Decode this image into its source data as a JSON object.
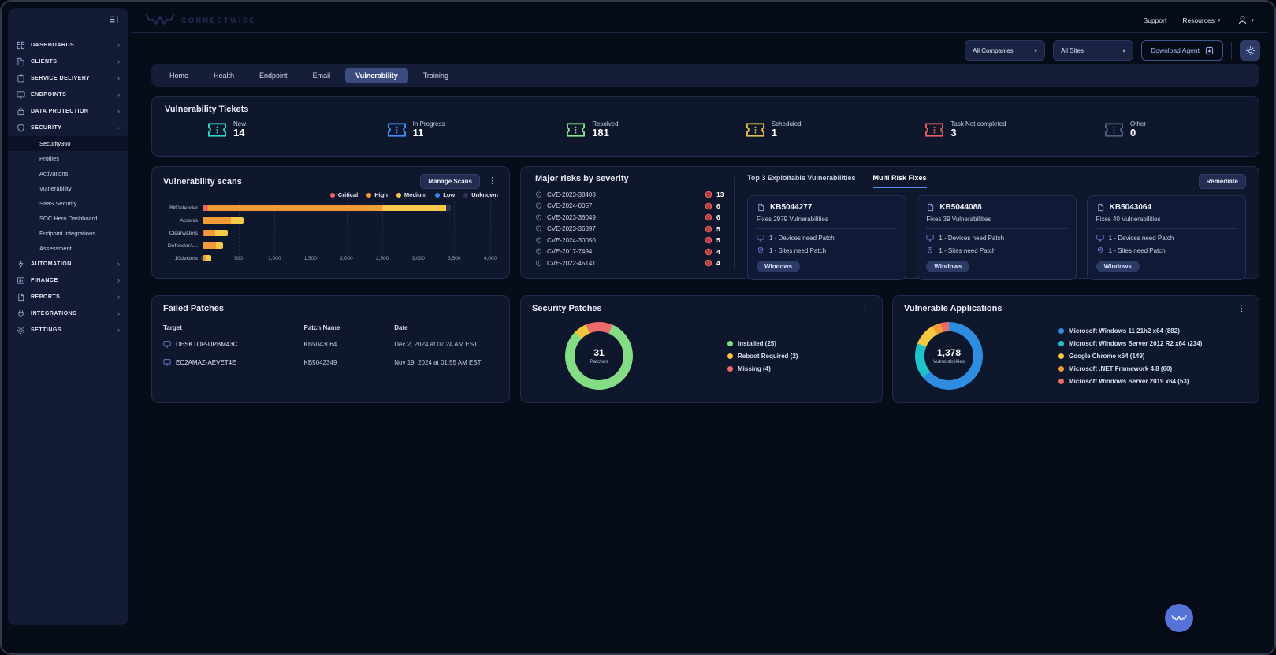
{
  "window": {
    "brand": "CONNECTWISE"
  },
  "header": {
    "support_label": "Support",
    "resources_label": "Resources"
  },
  "toolbar": {
    "companies_value": "All Companies",
    "sites_value": "All Sites",
    "download_label": "Download Agent"
  },
  "sidebar": {
    "items": [
      {
        "label": "DASHBOARDS",
        "icon": "dashboard-icon"
      },
      {
        "label": "CLIENTS",
        "icon": "clients-icon"
      },
      {
        "label": "SERVICE DELIVERY",
        "icon": "service-delivery-icon"
      },
      {
        "label": "ENDPOINTS",
        "icon": "endpoints-icon"
      },
      {
        "label": "DATA PROTECTION",
        "icon": "data-protection-icon"
      },
      {
        "label": "SECURITY",
        "icon": "security-icon",
        "expanded": true,
        "children": [
          "Security360",
          "Profiles",
          "Activations",
          "Vulnerability",
          "SaaS Security",
          "SOC Hero Dashboard",
          "Endpoint Integrations",
          "Assessment"
        ],
        "active_child": "Security360"
      },
      {
        "label": "AUTOMATION",
        "icon": "automation-icon"
      },
      {
        "label": "FINANCE",
        "icon": "finance-icon"
      },
      {
        "label": "REPORTS",
        "icon": "reports-icon"
      },
      {
        "label": "INTEGRATIONS",
        "icon": "integrations-icon"
      },
      {
        "label": "SETTINGS",
        "icon": "settings-icon"
      }
    ]
  },
  "tabs": {
    "items": [
      "Home",
      "Health",
      "Endpoint",
      "Email",
      "Vulnerability",
      "Training"
    ],
    "active": "Vulnerability"
  },
  "tickets": {
    "title": "Vulnerability Tickets",
    "stats": [
      {
        "label": "New",
        "value": "14",
        "color": "#2fd3c9"
      },
      {
        "label": "In Progress",
        "value": "11",
        "color": "#3f8cfa"
      },
      {
        "label": "Resolved",
        "value": "181",
        "color": "#8ade8f"
      },
      {
        "label": "Scheduled",
        "value": "1",
        "color": "#e4bf45"
      },
      {
        "label": "Task Not completed",
        "value": "3",
        "color": "#e25f5c"
      },
      {
        "label": "Other",
        "value": "0",
        "color": "#525e7d"
      }
    ]
  },
  "scans": {
    "title": "Vulnerability scans",
    "manage_button": "Manage Scans"
  },
  "chart_data": [
    {
      "type": "bar",
      "title": "Vulnerability scans",
      "orientation": "horizontal",
      "categories": [
        "BitDefender",
        "Acronis",
        "Clearwaters",
        "DefenderA...",
        "10dectest"
      ],
      "series": [
        {
          "name": "Critical",
          "color": "#f4635e",
          "values": [
            80,
            0,
            25,
            0,
            0
          ]
        },
        {
          "name": "High",
          "color": "#f29b38",
          "values": [
            2420,
            400,
            145,
            190,
            45
          ]
        },
        {
          "name": "Medium",
          "color": "#f7ca4a",
          "values": [
            890,
            170,
            180,
            100,
            75
          ]
        },
        {
          "name": "Low",
          "color": "#3b82f6",
          "values": [
            0,
            0,
            0,
            0,
            0
          ]
        },
        {
          "name": "Unknown",
          "color": "#2a3354",
          "values": [
            60,
            0,
            0,
            0,
            0
          ]
        }
      ],
      "xlim": [
        0,
        4000
      ],
      "xticks": {
        "values": [
          0,
          500,
          1000,
          1500,
          2000,
          2500,
          3000,
          3500,
          4000
        ],
        "labels": [
          "0",
          "500",
          "1,000",
          "1,500",
          "2,000",
          "2,500",
          "3,000",
          "3,500",
          "4,000"
        ]
      },
      "grid": true,
      "legend_position": "top-right"
    },
    {
      "type": "pie",
      "title": "Security Patches",
      "center_value": "31",
      "center_label": "Patches",
      "start_deg": -46,
      "segments": [
        {
          "name": "Reboot Required (2)",
          "value": 2,
          "color": "#f0c53f"
        },
        {
          "name": "Missing (4)",
          "value": 4,
          "color": "#ef6a6a"
        },
        {
          "name": "Installed (25)",
          "value": 25,
          "color": "#84dd84"
        }
      ],
      "legend": [
        {
          "label": "Installed (25)",
          "color": "#84dd84"
        },
        {
          "label": "Reboot Required (2)",
          "color": "#f0c53f"
        },
        {
          "label": "Missing (4)",
          "color": "#ef6a6a"
        }
      ]
    },
    {
      "type": "pie",
      "title": "Vulnerable Applications",
      "center_value": "1,378",
      "center_label": "Vulnerabilities",
      "start_deg": 0,
      "segments": [
        {
          "name": "Microsoft Windows 11 21h2 x64 (882)",
          "value": 882,
          "color": "#2e8de0"
        },
        {
          "name": "Microsoft Windows Server 2012 R2 x64 (234)",
          "value": 234,
          "color": "#1fc2c8"
        },
        {
          "name": "Google Chrome x64 (149)",
          "value": 149,
          "color": "#f5c93f"
        },
        {
          "name": "Microsoft .NET Framework 4.8 (60)",
          "value": 60,
          "color": "#f29b38"
        },
        {
          "name": "Microsoft Windows Server 2019 x64 (53)",
          "value": 53,
          "color": "#ef6a6a"
        }
      ],
      "legend": [
        {
          "label": "Microsoft Windows 11 21h2 x64 (882)",
          "color": "#2e8de0"
        },
        {
          "label": "Microsoft Windows Server 2012 R2 x64 (234)",
          "color": "#1fc2c8"
        },
        {
          "label": "Google Chrome x64 (149)",
          "color": "#f5c93f"
        },
        {
          "label": "Microsoft .NET Framework 4.8 (60)",
          "color": "#f29b38"
        },
        {
          "label": "Microsoft Windows Server 2019 x64 (53)",
          "color": "#ef6a6a"
        }
      ]
    }
  ],
  "major_risks": {
    "title": "Major risks by severity",
    "items": [
      {
        "cve": "CVE-2023-38408",
        "count": "13"
      },
      {
        "cve": "CVE-2024-0057",
        "count": "6"
      },
      {
        "cve": "CVE-2023-36049",
        "count": "6"
      },
      {
        "cve": "CVE-2023-36397",
        "count": "5"
      },
      {
        "cve": "CVE-2024-30050",
        "count": "5"
      },
      {
        "cve": "CVE-2017-7494",
        "count": "4"
      },
      {
        "cve": "CVE-2022-45141",
        "count": "4"
      }
    ]
  },
  "fixes": {
    "tabs": [
      "Top 3 Exploitable Vulnerabilities",
      "Multi Risk Fixes"
    ],
    "active": "Multi Risk Fixes",
    "remediate_label": "Remediate",
    "cards": [
      {
        "kb": "KB5044277",
        "fixes": "Fixes 2979 Vulnerabilities",
        "devices": "1 - Devices need Patch",
        "sites": "1 - Sites need Patch",
        "tag": "Windows"
      },
      {
        "kb": "KB5044088",
        "fixes": "Fixes 39 Vulnerabilities",
        "devices": "1 - Devices need Patch",
        "sites": "1 - Sites need Patch",
        "tag": "Windows"
      },
      {
        "kb": "KB5043064",
        "fixes": "Fixes 40 Vulnerabilities",
        "devices": "1 - Devices need Patch",
        "sites": "1 - Sites need Patch",
        "tag": "Windows"
      }
    ]
  },
  "failed_patches": {
    "title": "Failed Patches",
    "columns": [
      "Target",
      "Patch Name",
      "Date"
    ],
    "rows": [
      {
        "target": "DESKTOP-UPBM43C",
        "patch": "KB5043064",
        "date": "Dec 2, 2024 at 07:24 AM EST"
      },
      {
        "target": "EC2AMAZ-AEVET4E",
        "patch": "KB5042349",
        "date": "Nov 19, 2024 at 01:55 AM EST"
      }
    ]
  },
  "security_patches": {
    "title": "Security Patches"
  },
  "vulnerable_apps": {
    "title": "Vulnerable Applications"
  }
}
